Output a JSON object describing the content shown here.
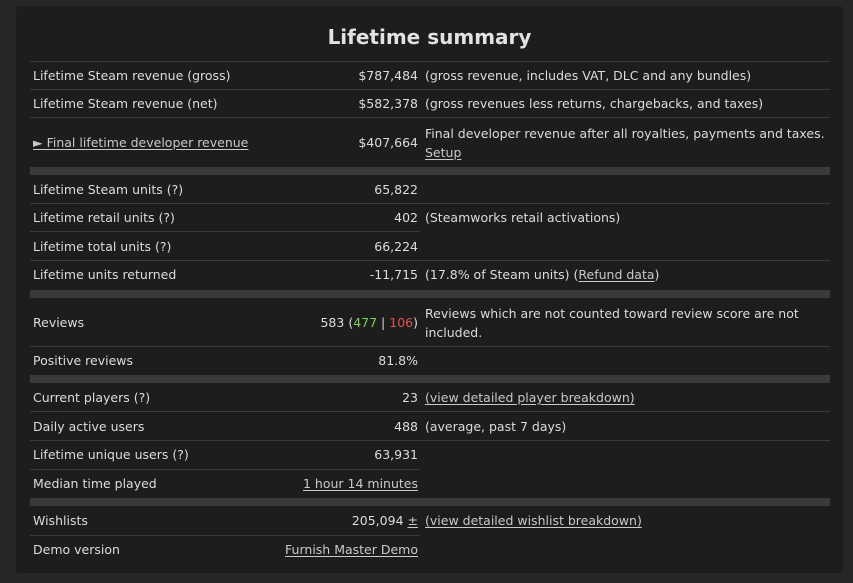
{
  "title": "Lifetime summary",
  "rows": {
    "gross": {
      "label": "Lifetime Steam revenue (gross)",
      "value": "$787,484",
      "note": "(gross revenue, includes VAT, DLC and any bundles)"
    },
    "net": {
      "label": "Lifetime Steam revenue (net)",
      "value": "$582,378",
      "note": "(gross revenues less returns, chargebacks, and taxes)"
    },
    "dev": {
      "label": "► Final lifetime developer revenue",
      "value": "$407,664",
      "note": "Final developer revenue after all royalties, payments and taxes.",
      "link": "Setup"
    },
    "steam_units": {
      "label": "Lifetime Steam units (?)",
      "value": "65,822"
    },
    "retail_units": {
      "label": "Lifetime retail units (?)",
      "value": "402",
      "note": "(Steamworks retail activations)"
    },
    "total_units": {
      "label": "Lifetime total units (?)",
      "value": "66,224"
    },
    "returned": {
      "label": "Lifetime units returned",
      "value": "-11,715",
      "note_pre": "(17.8% of Steam units) (",
      "note_link": "Refund data",
      "note_post": ")"
    },
    "reviews": {
      "label": "Reviews",
      "total": "583",
      "positive": "477",
      "sep": "|",
      "negative": "106",
      "open": "(",
      "close": ")",
      "note": "Reviews which are not counted toward review score are not included."
    },
    "positive": {
      "label": "Positive reviews",
      "value": "81.8%"
    },
    "current_players": {
      "label": "Current players (?)",
      "value": "23",
      "link": "(view detailed player breakdown)"
    },
    "dau": {
      "label": "Daily active users",
      "value": "488",
      "note": "(average, past 7 days)"
    },
    "unique_users": {
      "label": "Lifetime unique users (?)",
      "value": "63,931"
    },
    "median_time": {
      "label": "Median time played",
      "value": "1 hour 14 minutes"
    },
    "wishlists": {
      "label": "Wishlists",
      "value": "205,094",
      "plus": "±",
      "link": "(view detailed wishlist breakdown)"
    },
    "demo": {
      "label": "Demo version",
      "value": "Furnish Master Demo"
    }
  },
  "colors": {
    "positive": "#7fd152",
    "negative": "#e0544e"
  }
}
